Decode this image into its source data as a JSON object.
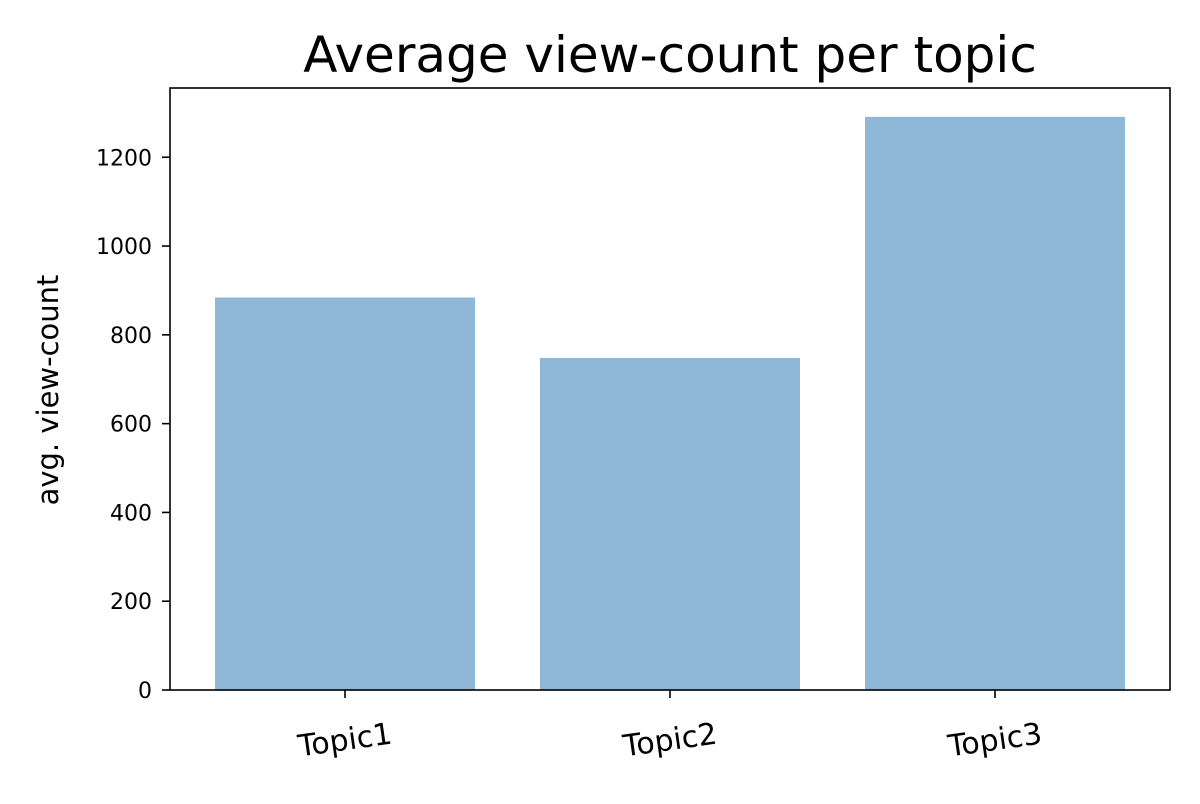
{
  "chart_data": {
    "type": "bar",
    "title": "Average view-count per topic",
    "xlabel": "",
    "ylabel": "avg. view-count",
    "categories": [
      "Topic1",
      "Topic2",
      "Topic3"
    ],
    "values": [
      884,
      748,
      1291
    ],
    "ylim": [
      0,
      1356
    ],
    "yticks": [
      0,
      200,
      400,
      600,
      800,
      1000,
      1200
    ],
    "bar_color": "#8fb8d8",
    "grid": false,
    "legend": "none"
  }
}
